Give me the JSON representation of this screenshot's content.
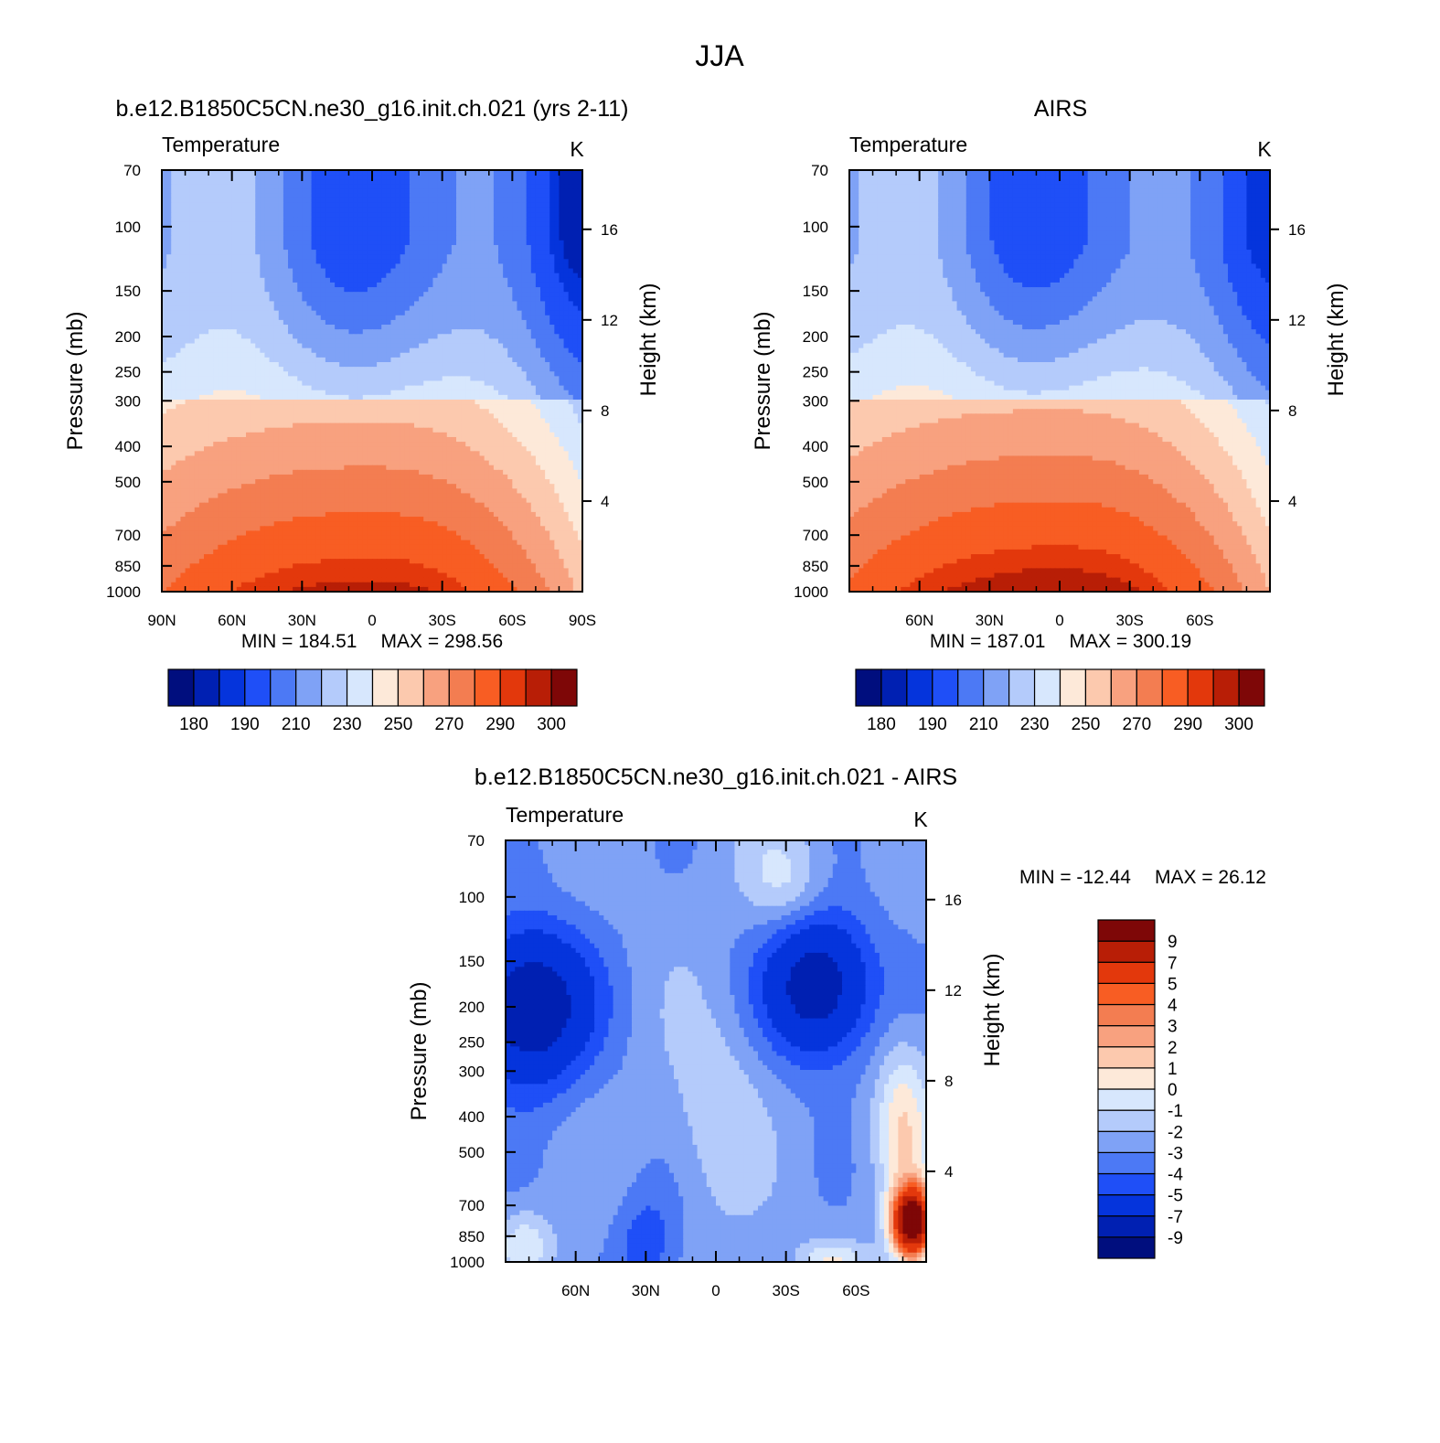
{
  "figure": {
    "suptitle": "JJA"
  },
  "chart_data": [
    {
      "type": "heatmap",
      "title": "b.e12.B1850C5CN.ne30_g16.init.ch.021 (yrs 2-11)",
      "subtitle": "Temperature",
      "units": "K",
      "ylabel": "Pressure (mb)",
      "y2label": "Height (km)",
      "x_ticks": [
        {
          "value": -90,
          "label": "90N"
        },
        {
          "value": -60,
          "label": "60N"
        },
        {
          "value": -30,
          "label": "30N"
        },
        {
          "value": 0,
          "label": "0"
        },
        {
          "value": 30,
          "label": "30S"
        },
        {
          "value": 60,
          "label": "60S"
        },
        {
          "value": 90,
          "label": "90S"
        }
      ],
      "xlim": [
        -90,
        90
      ],
      "y_ticks": [
        70,
        100,
        150,
        200,
        250,
        300,
        400,
        500,
        700,
        850,
        1000
      ],
      "ylim": [
        70,
        1000
      ],
      "y_scale": "log",
      "height_ticks": [
        4,
        8,
        12,
        16
      ],
      "min_label": "MIN = 184.51",
      "max_label": "MAX = 298.56",
      "colorbar": {
        "orientation": "horizontal",
        "levels": [
          175,
          180,
          185,
          190,
          200,
          210,
          220,
          230,
          240,
          250,
          260,
          270,
          280,
          290,
          295,
          300
        ],
        "tick_labels": [
          "180",
          "190",
          "210",
          "230",
          "250",
          "270",
          "290",
          "300"
        ],
        "colors": [
          "#000e7e",
          "#0020b2",
          "#0534dc",
          "#1f4ff7",
          "#4c79f5",
          "#7fa2f6",
          "#b4cbfb",
          "#d7e7fd",
          "#fde9d9",
          "#fcc9ae",
          "#f8a17f",
          "#f37d51",
          "#f85d23",
          "#e3380c",
          "#b81e06",
          "#7e0707"
        ]
      },
      "model": {
        "kind": "temperature",
        "tsurf": 297.5,
        "lapse": 95,
        "trop_cold": 195,
        "cold_lat": -8,
        "south_cold": 181,
        "north_cold": 230,
        "max_temp": 298.56,
        "min_temp": 184.51
      }
    },
    {
      "type": "heatmap",
      "title": "AIRS",
      "subtitle": "Temperature",
      "units": "K",
      "ylabel": "Pressure (mb)",
      "y2label": "Height (km)",
      "x_ticks": [
        {
          "value": -60,
          "label": "60N"
        },
        {
          "value": -30,
          "label": "30N"
        },
        {
          "value": 0,
          "label": "0"
        },
        {
          "value": 30,
          "label": "30S"
        },
        {
          "value": 60,
          "label": "60S"
        }
      ],
      "xlim": [
        -90,
        90
      ],
      "y_ticks": [
        70,
        100,
        150,
        200,
        250,
        300,
        400,
        500,
        700,
        850,
        1000
      ],
      "ylim": [
        70,
        1000
      ],
      "y_scale": "log",
      "height_ticks": [
        4,
        8,
        12,
        16
      ],
      "min_label": "MIN = 187.01",
      "max_label": "MAX = 300.19",
      "colorbar": {
        "orientation": "horizontal",
        "levels": [
          175,
          180,
          185,
          190,
          200,
          210,
          220,
          230,
          240,
          250,
          260,
          270,
          280,
          290,
          295,
          300
        ],
        "tick_labels": [
          "180",
          "190",
          "210",
          "230",
          "250",
          "270",
          "290",
          "300"
        ],
        "colors": [
          "#000e7e",
          "#0020b2",
          "#0534dc",
          "#1f4ff7",
          "#4c79f5",
          "#7fa2f6",
          "#b4cbfb",
          "#d7e7fd",
          "#fde9d9",
          "#fcc9ae",
          "#f8a17f",
          "#f37d51",
          "#f85d23",
          "#e3380c",
          "#b81e06",
          "#7e0707"
        ]
      },
      "model": {
        "kind": "temperature",
        "tsurf": 300,
        "lapse": 96,
        "trop_cold": 194,
        "cold_lat": -12,
        "south_cold": 186,
        "north_cold": 226,
        "max_temp": 300.19,
        "min_temp": 187.01
      }
    },
    {
      "type": "heatmap",
      "title": "b.e12.B1850C5CN.ne30_g16.init.ch.021 - AIRS",
      "subtitle": "Temperature",
      "units": "K",
      "ylabel": "Pressure (mb)",
      "y2label": "Height (km)",
      "x_ticks": [
        {
          "value": -60,
          "label": "60N"
        },
        {
          "value": -30,
          "label": "30N"
        },
        {
          "value": 0,
          "label": "0"
        },
        {
          "value": 30,
          "label": "30S"
        },
        {
          "value": 60,
          "label": "60S"
        }
      ],
      "xlim": [
        -90,
        90
      ],
      "y_ticks": [
        70,
        100,
        150,
        200,
        250,
        300,
        400,
        500,
        700,
        850,
        1000
      ],
      "ylim": [
        70,
        1000
      ],
      "y_scale": "log",
      "height_ticks": [
        4,
        8,
        12,
        16
      ],
      "min_label": "MIN = -12.44",
      "max_label": "MAX = 26.12",
      "colorbar": {
        "orientation": "vertical",
        "levels": [
          -12.44,
          -9,
          -7,
          -5,
          -4,
          -3,
          -2,
          -1,
          0,
          1,
          2,
          3,
          4,
          5,
          7,
          9
        ],
        "tick_labels": [
          "-9",
          "-7",
          "-5",
          "-4",
          "-3",
          "-2",
          "-1",
          "0",
          "1",
          "2",
          "3",
          "4",
          "5",
          "7",
          "9"
        ],
        "colors": [
          "#000e7e",
          "#0020b2",
          "#0534dc",
          "#1f4ff7",
          "#4c79f5",
          "#7fa2f6",
          "#b4cbfb",
          "#d7e7fd",
          "#fde9d9",
          "#fcc9ae",
          "#f8a17f",
          "#f37d51",
          "#f85d23",
          "#e3380c",
          "#b81e06",
          "#7e0707"
        ]
      },
      "model": {
        "kind": "difference",
        "base": -2.6,
        "features": [
          {
            "lat": -80,
            "p": 200,
            "amp": -6.5,
            "slat": 18,
            "sp": 0.35
          },
          {
            "lat": 44,
            "p": 175,
            "amp": -6.0,
            "slat": 16,
            "sp": 0.32
          },
          {
            "lat": -30,
            "p": 900,
            "amp": -2.0,
            "slat": 10,
            "sp": 0.25
          },
          {
            "lat": 0,
            "p": 380,
            "amp": 1.4,
            "slat": 14,
            "sp": 0.45
          },
          {
            "lat": 30,
            "p": 90,
            "amp": 2.0,
            "slat": 12,
            "sp": 0.22
          },
          {
            "lat": 80,
            "p": 420,
            "amp": 3.4,
            "slat": 8,
            "sp": 0.35
          },
          {
            "lat": 84,
            "p": 780,
            "amp": 14.0,
            "slat": 6,
            "sp": 0.16
          },
          {
            "lat": 50,
            "p": 980,
            "amp": 2.6,
            "slat": 10,
            "sp": 0.08
          },
          {
            "lat": -82,
            "p": 900,
            "amp": 2.5,
            "slat": 8,
            "sp": 0.15
          }
        ],
        "max_temp": 26.12,
        "min_temp": -12.44
      }
    }
  ]
}
